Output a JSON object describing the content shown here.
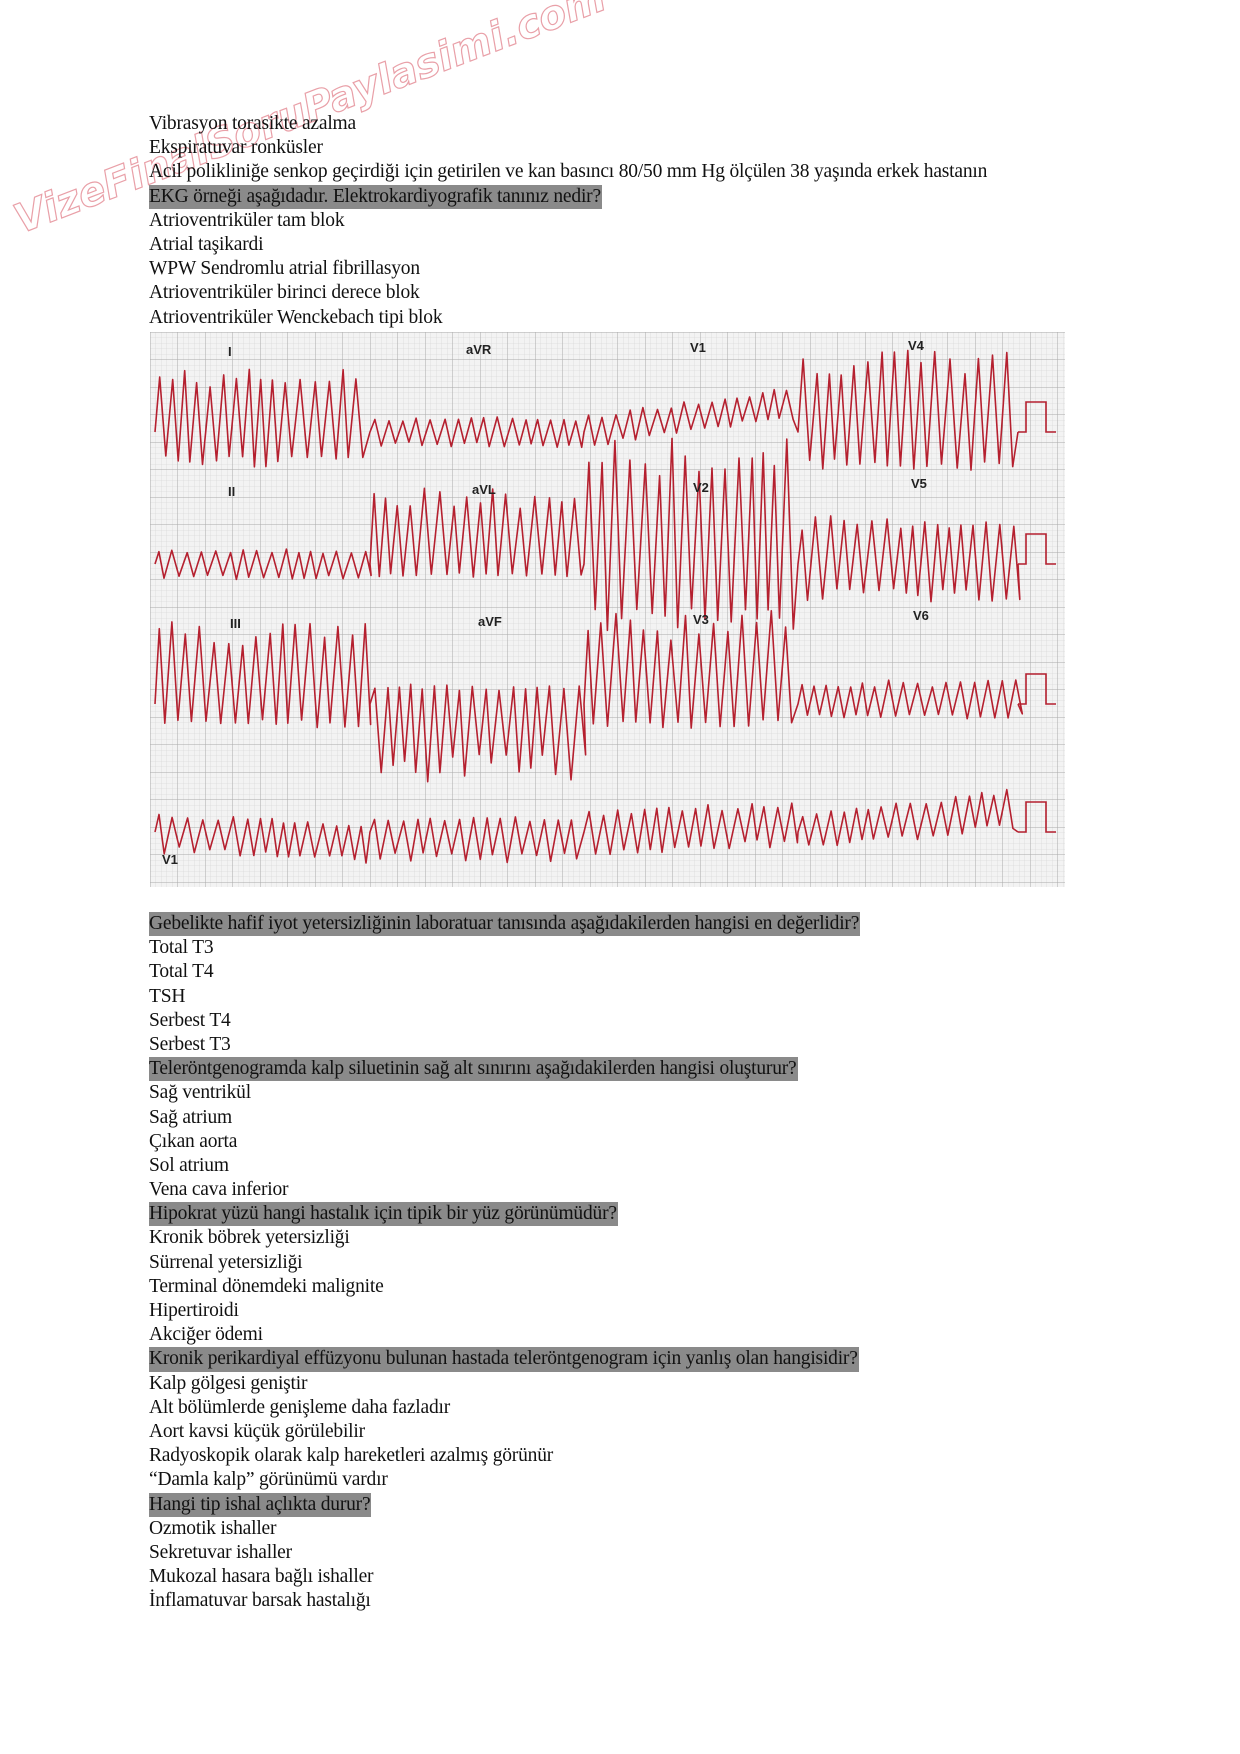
{
  "watermark": "VizeFinalSoruPaylasimi.com",
  "section1": {
    "prev_options": [
      "Vibrasyon torasikte azalma",
      "Ekspiratuvar ronküsler"
    ],
    "q1_text_line1": "Acil polikliniğe senkop geçirdiği için getirilen ve kan basıncı 80/50 mm Hg ölçülen 38 yaşında erkek hastanın",
    "q1_text_line2": "EKG örneği aşağıdadır. Elektrokardiyografik tanınız nedir?",
    "q1_options": [
      "Atrioventriküler tam blok",
      "Atrial taşikardi",
      "WPW Sendromlu atrial fibrillasyon",
      "Atrioventriküler birinci derece blok",
      "Atrioventriküler Wenckebach tipi blok"
    ]
  },
  "ecg": {
    "trace_color": "#b5202f",
    "grid_color": "#b9b9b9",
    "leads": [
      [
        "I",
        "aVR",
        "V1",
        "V4"
      ],
      [
        "II",
        "aVL",
        "V2",
        "V5"
      ],
      [
        "III",
        "aVF",
        "V3",
        "V6"
      ]
    ],
    "rhythm_lead": "V1"
  },
  "questions": [
    {
      "text": "Gebelikte hafif iyot yetersizliğinin laboratuar tanısında aşağıdakilerden hangisi en değerlidir?",
      "options": [
        "Total T3",
        "Total T4",
        "TSH",
        "Serbest T4",
        "Serbest T3"
      ]
    },
    {
      "text": "Teleröntgenogramda kalp siluetinin sağ alt sınırını aşağıdakilerden hangisi oluşturur?",
      "options": [
        "Sağ ventrikül",
        "Sağ atrium",
        "Çıkan aorta",
        "Sol atrium",
        "Vena cava inferior"
      ]
    },
    {
      "text": "Hipokrat yüzü hangi hastalık için tipik bir yüz görünümüdür?",
      "options": [
        "Kronik böbrek yetersizliği",
        "Sürrenal yetersizliği",
        "Terminal dönemdeki malignite",
        "Hipertiroidi",
        "Akciğer ödemi"
      ]
    },
    {
      "text": "Kronik perikardiyal effüzyonu bulunan hastada teleröntgenogram için yanlış olan hangisidir?",
      "options": [
        "Kalp gölgesi geniştir",
        "Alt bölümlerde genişleme daha fazladır",
        "Aort kavsi küçük görülebilir",
        "Radyoskopik olarak kalp hareketleri azalmış görünür",
        "“Damla kalp” görünümü vardır"
      ]
    },
    {
      "text": "Hangi tip ishal açlıkta durur?",
      "options": [
        "Ozmotik ishaller",
        "Sekretuvar ishaller",
        "Mukozal hasara bağlı ishaller",
        "İnflamatuvar barsak hastalığı"
      ]
    }
  ]
}
